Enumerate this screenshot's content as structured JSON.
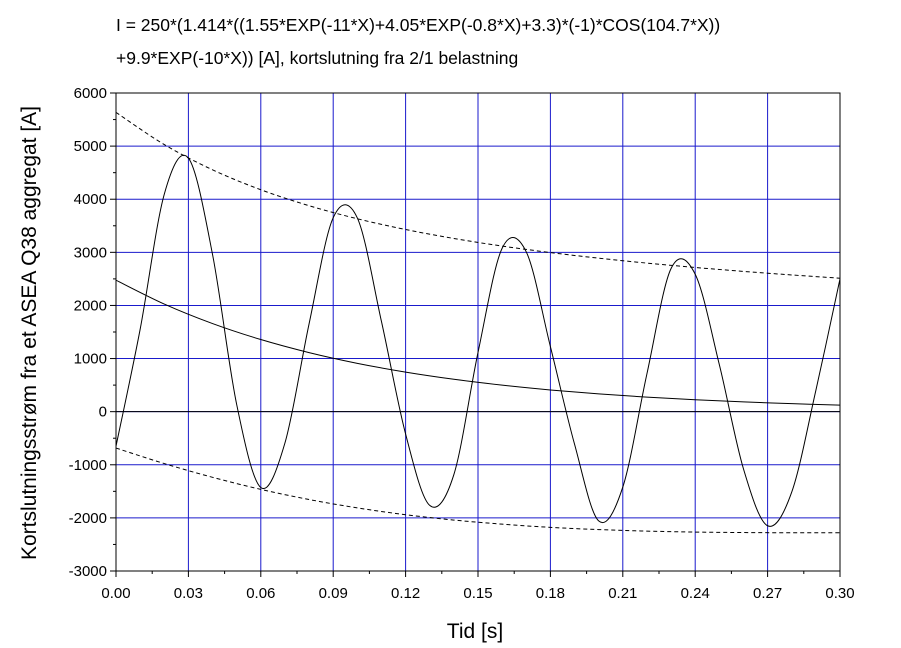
{
  "chart_data": {
    "type": "line",
    "title": [
      "I = 250*(1.414*((1.55*EXP(-11*X)+4.05*EXP(-0.8*X)+3.3)*(-1)*COS(104.7*X))",
      "+9.9*EXP(-10*X)) [A], kortslutning fra 2/1 belastning"
    ],
    "xlabel": "Tid [s]",
    "ylabel": "Kortslutningsstrøm fra et ASEA Q38 aggregat [A]",
    "xlim": [
      0,
      0.3
    ],
    "ylim": [
      -3000,
      6000
    ],
    "x_ticks": [
      "0.00",
      "0.03",
      "0.06",
      "0.09",
      "0.12",
      "0.15",
      "0.18",
      "0.21",
      "0.24",
      "0.27",
      "0.30"
    ],
    "y_ticks": [
      "-3000",
      "-2000",
      "-1000",
      "0",
      "1000",
      "2000",
      "3000",
      "4000",
      "5000",
      "6000"
    ],
    "grid": true,
    "grid_color": "#1a1acc",
    "series": [
      {
        "style": "solid",
        "x": [
          0.0,
          0.01,
          0.02,
          0.03,
          0.04,
          0.05,
          0.06,
          0.07,
          0.08,
          0.09,
          0.1,
          0.11,
          0.12,
          0.13,
          0.14,
          0.15,
          0.16,
          0.17,
          0.18,
          0.19,
          0.2,
          0.21,
          0.22,
          0.23,
          0.24,
          0.25,
          0.26,
          0.27,
          0.28,
          0.29,
          0.3
        ],
        "y": [
          -651,
          1549,
          4094,
          4775,
          2960,
          136,
          -1428,
          -590,
          1653,
          3652,
          3648,
          1697,
          -420,
          -1765,
          -1184,
          1114,
          3077,
          3008,
          1225,
          -612,
          -2057,
          -1420,
          713,
          2696,
          2588,
          886,
          -1077,
          -2148,
          -1514,
          401,
          2501
        ]
      },
      {
        "style": "solid",
        "x": [
          0.0,
          0.02,
          0.04,
          0.06,
          0.08,
          0.1,
          0.12,
          0.14,
          0.16,
          0.18,
          0.2,
          0.22,
          0.24,
          0.26,
          0.28,
          0.3
        ],
        "y": [
          2475,
          2026,
          1659,
          1358,
          1112,
          910,
          745,
          610,
          500,
          409,
          335,
          274,
          225,
          184,
          151,
          123
        ]
      },
      {
        "style": "dashed",
        "x": [
          0.0,
          0.02,
          0.04,
          0.06,
          0.08,
          0.1,
          0.12,
          0.14,
          0.16,
          0.18,
          0.2,
          0.22,
          0.24,
          0.26,
          0.28,
          0.3
        ],
        "y": [
          5635,
          5029,
          4554,
          4179,
          3878,
          3632,
          3430,
          3261,
          3118,
          2996,
          2890,
          2797,
          2715,
          2641,
          2574,
          2513
        ]
      },
      {
        "style": "dashed",
        "x": [
          0.0,
          0.02,
          0.04,
          0.06,
          0.08,
          0.1,
          0.12,
          0.14,
          0.16,
          0.18,
          0.2,
          0.22,
          0.24,
          0.26,
          0.28,
          0.3
        ],
        "y": [
          -685,
          -977,
          -1236,
          -1463,
          -1654,
          -1812,
          -1940,
          -2041,
          -2118,
          -2178,
          -2220,
          -2249,
          -2267,
          -2276,
          -2280,
          -2280
        ]
      },
      {
        "style": "solid",
        "x": [
          0.0,
          0.3
        ],
        "y": [
          0,
          0
        ]
      }
    ]
  }
}
